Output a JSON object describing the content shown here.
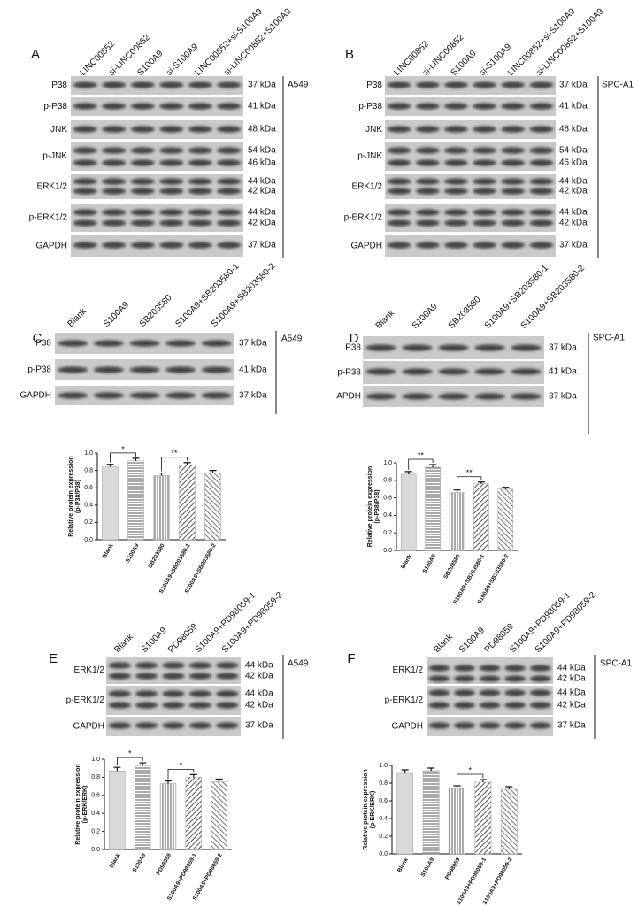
{
  "blots": [
    {
      "label": "A",
      "cell_line": "A549",
      "lanes": [
        "LINC00852",
        "si-LINC00852",
        "S100A9",
        "si-S100A9",
        "LINC00852+si-S100A9",
        "si-LINC00852+S100A9"
      ],
      "rows": [
        {
          "name": "P38",
          "kda": [
            "37 kDa"
          ]
        },
        {
          "name": "p-P38",
          "kda": [
            "41 kDa"
          ]
        },
        {
          "name": "JNK",
          "kda": [
            "48 kDa"
          ]
        },
        {
          "name": "p-JNK",
          "kda": [
            "54 kDa",
            "46 kDa"
          ]
        },
        {
          "name": "ERK1/2",
          "kda": [
            "44 kDa",
            "42 kDa"
          ]
        },
        {
          "name": "p-ERK1/2",
          "kda": [
            "44 kDa",
            "42 kDa"
          ]
        },
        {
          "name": "GAPDH",
          "kda": [
            "37 kDa"
          ]
        }
      ]
    },
    {
      "label": "B",
      "cell_line": "SPC-A1",
      "lanes": [
        "LINC00852",
        "si-LINC00852",
        "S100A9",
        "si-S100A9",
        "LINC00852+si-S100A9",
        "si-LINC00852+S100A9"
      ],
      "rows": [
        {
          "name": "P38",
          "kda": [
            "37 kDa"
          ]
        },
        {
          "name": "p-P38",
          "kda": [
            "41 kDa"
          ]
        },
        {
          "name": "JNK",
          "kda": [
            "48 kDa"
          ]
        },
        {
          "name": "p-JNK",
          "kda": [
            "54 kDa",
            "46 kDa"
          ]
        },
        {
          "name": "ERK1/2",
          "kda": [
            "44 kDa",
            "42 kDa"
          ]
        },
        {
          "name": "p-ERK1/2",
          "kda": [
            "44 kDa",
            "42 kDa"
          ]
        },
        {
          "name": "GAPDH",
          "kda": [
            "37 kDa"
          ]
        }
      ]
    },
    {
      "label": "C",
      "cell_line": "A549",
      "lanes": [
        "Blank",
        "S100A9",
        "SB203580",
        "S100A9+SB203580-1",
        "S100A9+SB203580-2"
      ],
      "rows": [
        {
          "name": "P38",
          "kda": [
            "37 kDa"
          ]
        },
        {
          "name": "p-P38",
          "kda": [
            "41 kDa"
          ]
        },
        {
          "name": "GAPDH",
          "kda": [
            "37 kDa"
          ]
        }
      ]
    },
    {
      "label": "D",
      "cell_line": "SPC-A1",
      "lanes": [
        "Blank",
        "S100A9",
        "SB203580",
        "S100A9+SB203580-1",
        "S100A9+SB203580-2"
      ],
      "rows": [
        {
          "name": "P38",
          "kda": [
            "37 kDa"
          ]
        },
        {
          "name": "p-P38",
          "kda": [
            "41 kDa"
          ]
        },
        {
          "name": "APDH",
          "kda": [
            "37 kDa"
          ]
        }
      ]
    },
    {
      "label": "E",
      "cell_line": "A549",
      "lanes": [
        "Blank",
        "S100A9",
        "PD98059",
        "S100A9+PD98059-1",
        "S100A9+PD98059-2"
      ],
      "rows": [
        {
          "name": "ERK1/2",
          "kda": [
            "44 kDa",
            "42 kDa"
          ]
        },
        {
          "name": "p-ERK1/2",
          "kda": [
            "44 kDa",
            "42 kDa"
          ]
        },
        {
          "name": "GAPDH",
          "kda": [
            "37 kDa"
          ]
        }
      ]
    },
    {
      "label": "F",
      "cell_line": "SPC-A1",
      "lanes": [
        "Blank",
        "S100A9",
        "PD98059",
        "S100A9+PD98059-1",
        "S100A9+PD98059-2"
      ],
      "rows": [
        {
          "name": "ERK1/2",
          "kda": [
            "44 kDa",
            "42 kDa"
          ]
        },
        {
          "name": "p-ERK1/2",
          "kda": [
            "44 kDa",
            "42 kDa"
          ]
        },
        {
          "name": "GAPDH",
          "kda": [
            "37 kDa"
          ]
        }
      ]
    }
  ],
  "chart_data": [
    {
      "type": "bar",
      "y_label": "Relative protein expression",
      "y_label_2": "(p-P38/P38)",
      "categories": [
        "Blank",
        "S100A9",
        "SB203580",
        "S100A9+SB203580-1",
        "S100A9+SB203580-2"
      ],
      "values": [
        0.84,
        0.91,
        0.74,
        0.86,
        0.77
      ],
      "errors": [
        0.03,
        0.03,
        0.03,
        0.03,
        0.03
      ],
      "ylim": [
        0,
        1
      ],
      "yticks": [
        {
          "value": 0,
          "label": "0.0"
        },
        0.2,
        0.4,
        0.6,
        0.8,
        {
          "value": 1,
          "label": "1.0"
        }
      ],
      "brackets": [
        {
          "label": "*",
          "pair": [
            0,
            1
          ]
        },
        {
          "label": "**",
          "pair": [
            2,
            3
          ]
        }
      ]
    },
    {
      "type": "bar",
      "y_label": "Relative protein expression",
      "y_label_2": "(p-P38/P38)",
      "categories": [
        "Blank",
        "S100A9",
        "SB203580",
        "S100A9+SB203580-1",
        "S100A9+SB203580-2"
      ],
      "values": [
        0.87,
        0.95,
        0.66,
        0.76,
        0.7
      ],
      "errors": [
        0.03,
        0.03,
        0.03,
        0.02,
        0.02
      ],
      "ylim": [
        0,
        1
      ],
      "yticks": [
        {
          "value": 0,
          "label": "0.0"
        },
        0.2,
        0.4,
        0.6,
        0.8,
        {
          "value": 1,
          "label": "1.0"
        }
      ],
      "brackets": [
        {
          "label": "**",
          "pair": [
            0,
            1
          ]
        },
        {
          "label": "**",
          "pair": [
            2,
            3
          ]
        }
      ]
    },
    {
      "type": "bar",
      "y_label": "Relative protein expression",
      "y_label_2": "(p-ERK/ERK)",
      "categories": [
        "Blank",
        "S100A9",
        "PD98059",
        "S100A9+PD98059-1",
        "S100A9+PD98059-2"
      ],
      "values": [
        0.87,
        0.93,
        0.73,
        0.8,
        0.75
      ],
      "errors": [
        0.04,
        0.03,
        0.03,
        0.03,
        0.03
      ],
      "ylim": [
        0,
        1
      ],
      "yticks": [
        {
          "value": 0,
          "label": "0.0"
        },
        0.2,
        0.4,
        0.6,
        0.8,
        {
          "value": 1,
          "label": "1.0"
        }
      ],
      "brackets": [
        {
          "label": "*",
          "pair": [
            0,
            1
          ]
        },
        {
          "label": "*",
          "pair": [
            2,
            3
          ]
        }
      ]
    },
    {
      "type": "bar",
      "y_label": "Relative protein expression",
      "y_label_2": "(p-ERK/ERK)",
      "categories": [
        "Blank",
        "S100A9",
        "PD98059",
        "S100A9+PD98059-1",
        "S100A9+PD98059-2"
      ],
      "values": [
        0.91,
        0.94,
        0.74,
        0.81,
        0.73
      ],
      "errors": [
        0.04,
        0.03,
        0.03,
        0.03,
        0.03
      ],
      "ylim": [
        0,
        1
      ],
      "yticks": [
        {
          "value": 0,
          "label": "0.0"
        },
        0.2,
        0.4,
        0.6,
        0.8,
        {
          "value": 1,
          "label": "1.0"
        }
      ],
      "brackets": [
        {
          "label": "*",
          "pair": [
            2,
            3
          ]
        }
      ]
    }
  ]
}
